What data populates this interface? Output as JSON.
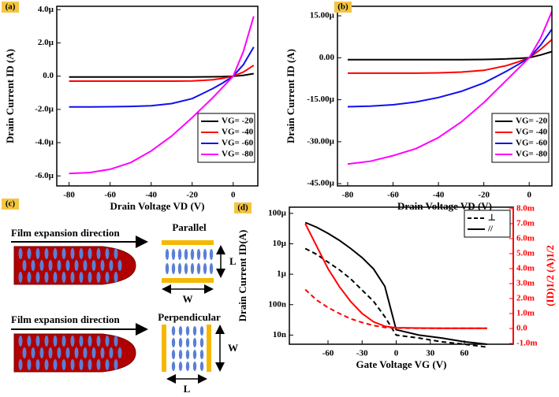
{
  "chart_data": [
    {
      "type": "line",
      "label": "(a)",
      "x_label": "Drain Voltage VD (V)",
      "y_label": "Drain Current ID (A)",
      "x": [
        -80,
        -70,
        -60,
        -50,
        -40,
        -30,
        -20,
        -10,
        -5,
        0,
        5,
        10
      ],
      "series": [
        {
          "name": "VG= -20",
          "color": "#000000",
          "values": [
            -0.05,
            -0.05,
            -0.05,
            -0.05,
            -0.05,
            -0.05,
            -0.05,
            -0.04,
            -0.03,
            0,
            0.05,
            0.15
          ]
        },
        {
          "name": "VG= -40",
          "color": "#ff0000",
          "values": [
            -0.3,
            -0.3,
            -0.3,
            -0.3,
            -0.3,
            -0.3,
            -0.29,
            -0.22,
            -0.13,
            0,
            0.25,
            0.65
          ]
        },
        {
          "name": "VG= -60",
          "color": "#1010ee",
          "values": [
            -1.85,
            -1.85,
            -1.84,
            -1.82,
            -1.78,
            -1.65,
            -1.35,
            -0.75,
            -0.4,
            0,
            0.7,
            1.75
          ]
        },
        {
          "name": "VG= -80",
          "color": "#ff00ff",
          "values": [
            -5.85,
            -5.8,
            -5.6,
            -5.2,
            -4.5,
            -3.6,
            -2.5,
            -1.3,
            -0.65,
            0,
            1.5,
            3.6
          ]
        }
      ],
      "xlim": [
        -86,
        12
      ],
      "xticks": [
        -80,
        -60,
        -40,
        -20,
        0
      ],
      "ylim": [
        -6.6,
        4.2
      ],
      "yticks": [
        {
          "value": -6,
          "label": "-6.0µ"
        },
        {
          "value": -4,
          "label": "-4.0µ"
        },
        {
          "value": -2,
          "label": "-2.0µ"
        },
        {
          "value": 0,
          "label": "0.0"
        },
        {
          "value": 2,
          "label": "2.0µ"
        },
        {
          "value": 4,
          "label": "4.0µ"
        }
      ],
      "legend": "lower right"
    },
    {
      "type": "line",
      "label": "(b)",
      "x_label": "Drain Voltage VD (V)",
      "y_label": "Drain Current ID (A)",
      "x": [
        -80,
        -70,
        -60,
        -50,
        -40,
        -30,
        -20,
        -10,
        -5,
        0,
        5,
        10
      ],
      "series": [
        {
          "name": "VG= -20",
          "color": "#000000",
          "values": [
            -0.7,
            -0.7,
            -0.7,
            -0.7,
            -0.7,
            -0.68,
            -0.6,
            -0.4,
            -0.2,
            0,
            1,
            2.2
          ]
        },
        {
          "name": "VG= -40",
          "color": "#ff0000",
          "values": [
            -5.5,
            -5.5,
            -5.5,
            -5.5,
            -5.4,
            -5.1,
            -4.5,
            -2.8,
            -1.5,
            0,
            3,
            6.5
          ]
        },
        {
          "name": "VG= -60",
          "color": "#1010ee",
          "values": [
            -17.5,
            -17.3,
            -16.8,
            -15.8,
            -14.2,
            -12,
            -9,
            -4.8,
            -2.5,
            0,
            4.5,
            10.2
          ]
        },
        {
          "name": "VG= -80",
          "color": "#ff00ff",
          "values": [
            -38,
            -37,
            -35,
            -32.5,
            -28.5,
            -23,
            -16,
            -8,
            -4,
            0,
            7,
            16.5
          ]
        }
      ],
      "xlim": [
        -84.5,
        10
      ],
      "xticks": [
        -80,
        -60,
        -40,
        -20,
        0
      ],
      "ylim": [
        -45.8,
        18.4
      ],
      "yticks": [
        {
          "value": -45,
          "label": "-45.00µ"
        },
        {
          "value": -30,
          "label": "-30.00µ"
        },
        {
          "value": -15,
          "label": "-15.00µ"
        },
        {
          "value": 0,
          "label": "0.00"
        },
        {
          "value": 15,
          "label": "15.00µ"
        }
      ],
      "legend": "lower right"
    },
    {
      "type": "line",
      "label": "(d)",
      "x_label": "Gate Voltage VG (V)",
      "y_label": "Drain Current ID(A)",
      "y2_label": "(ID)1/2 (A)1/2",
      "y2_color": "#ff0000",
      "x": [
        -80,
        -70,
        -60,
        -50,
        -40,
        -30,
        -20,
        -10,
        0,
        20,
        40,
        60,
        80
      ],
      "log_y": true,
      "series": [
        {
          "name": "⊥",
          "color": "#000000",
          "dash": true,
          "values": [
            7e-06,
            4.5e-06,
            2.5e-06,
            1.4e-06,
            7e-07,
            3e-07,
            1.3e-07,
            4e-08,
            1e-08,
            8e-09,
            6e-09,
            5e-09,
            4e-09
          ]
        },
        {
          "name": "//",
          "color": "#000000",
          "dash": false,
          "values": [
            5e-05,
            3.5e-05,
            2.2e-05,
            1.3e-05,
            7e-06,
            3.5e-06,
            1.5e-06,
            4e-07,
            1.5e-08,
            1e-08,
            8e-09,
            6e-09,
            5e-09
          ]
        },
        {
          "color": "#ff0000",
          "dash": true,
          "axis": "y2",
          "values": [
            2.6,
            1.9,
            1.4,
            1.0,
            0.65,
            0.4,
            0.2,
            0.07,
            0.03,
            0.02,
            0.02,
            0.02,
            0.02
          ]
        },
        {
          "color": "#ff0000",
          "dash": false,
          "axis": "y2",
          "values": [
            7.0,
            5.5,
            4.0,
            2.8,
            1.8,
            1.0,
            0.45,
            0.15,
            0.05,
            0.03,
            0.02,
            0.02,
            0.02
          ]
        }
      ],
      "xlim": [
        -94,
        103
      ],
      "xticks": [
        -60,
        -30,
        0,
        30,
        60
      ],
      "ylim": [
        5e-09,
        0.00016
      ],
      "yticks": [
        {
          "value": 1e-08,
          "label": "10n"
        },
        {
          "value": 1e-07,
          "label": "100n"
        },
        {
          "value": 1e-06,
          "label": "1µ"
        },
        {
          "value": 1e-05,
          "label": "10µ"
        },
        {
          "value": 0.0001,
          "label": "100µ"
        }
      ],
      "y2lim": [
        -1.05,
        8.1
      ],
      "y2ticks": [
        {
          "value": -1,
          "label": "-1.0m"
        },
        {
          "value": 0,
          "label": "0.0"
        },
        {
          "value": 1,
          "label": "1.0m"
        },
        {
          "value": 2,
          "label": "2.0m"
        },
        {
          "value": 3,
          "label": "3.0m"
        },
        {
          "value": 4,
          "label": "4.0m"
        },
        {
          "value": 5,
          "label": "5.0m"
        },
        {
          "value": 6,
          "label": "6.0m"
        },
        {
          "value": 7,
          "label": "7.0m"
        },
        {
          "value": 8,
          "label": "8.0m"
        }
      ],
      "legend": "upper right"
    }
  ],
  "diagram": {
    "label": "(c)",
    "top_text": "Film expansion direction",
    "top_mode": "Parallel",
    "top_L": "L",
    "top_W": "W",
    "bottom_text": "Film expansion direction",
    "bottom_mode": "Perpendicular",
    "bottom_W": "W",
    "bottom_L": "L"
  }
}
